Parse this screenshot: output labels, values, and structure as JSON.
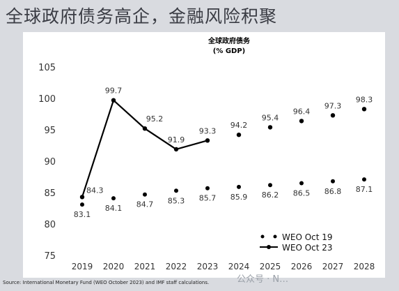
{
  "title": "全球政府债务高企，金融风险积聚",
  "source": "Source: International Monetary Fund (WEO October 2023) and IMF staff calculations.",
  "watermark": "公众号 · N…",
  "chart_data": {
    "type": "line",
    "title": "全球政府债务",
    "subtitle": "(% GDP)",
    "xlabel": "",
    "ylabel": "",
    "categories": [
      "2019",
      "2020",
      "2021",
      "2022",
      "2023",
      "2024",
      "2025",
      "2026",
      "2027",
      "2028"
    ],
    "yticks": [
      75,
      80,
      85,
      90,
      95,
      100,
      105
    ],
    "ylim": [
      75,
      105
    ],
    "grid": false,
    "legend_position": "bottom-right",
    "series": [
      {
        "name": "WEO Oct 19",
        "style": "dots",
        "color": "#000000",
        "values": [
          83.1,
          84.1,
          84.7,
          85.3,
          85.7,
          85.9,
          86.2,
          86.5,
          86.8,
          87.1
        ],
        "labels": [
          "83.1",
          "84.1",
          "84.7",
          "85.3",
          "85.7",
          "85.9",
          "86.2",
          "86.5",
          "86.8",
          "87.1"
        ]
      },
      {
        "name": "WEO Oct 23",
        "style": "line",
        "color": "#000000",
        "values": [
          84.3,
          99.7,
          95.2,
          91.9,
          93.3,
          94.2,
          95.4,
          96.4,
          97.3,
          98.3
        ],
        "solid_through": "2023",
        "labels": [
          "84.3",
          "99.7",
          "95.2",
          "91.9",
          "93.3",
          "94.2",
          "95.4",
          "96.4",
          "97.3",
          "98.3"
        ]
      }
    ]
  }
}
